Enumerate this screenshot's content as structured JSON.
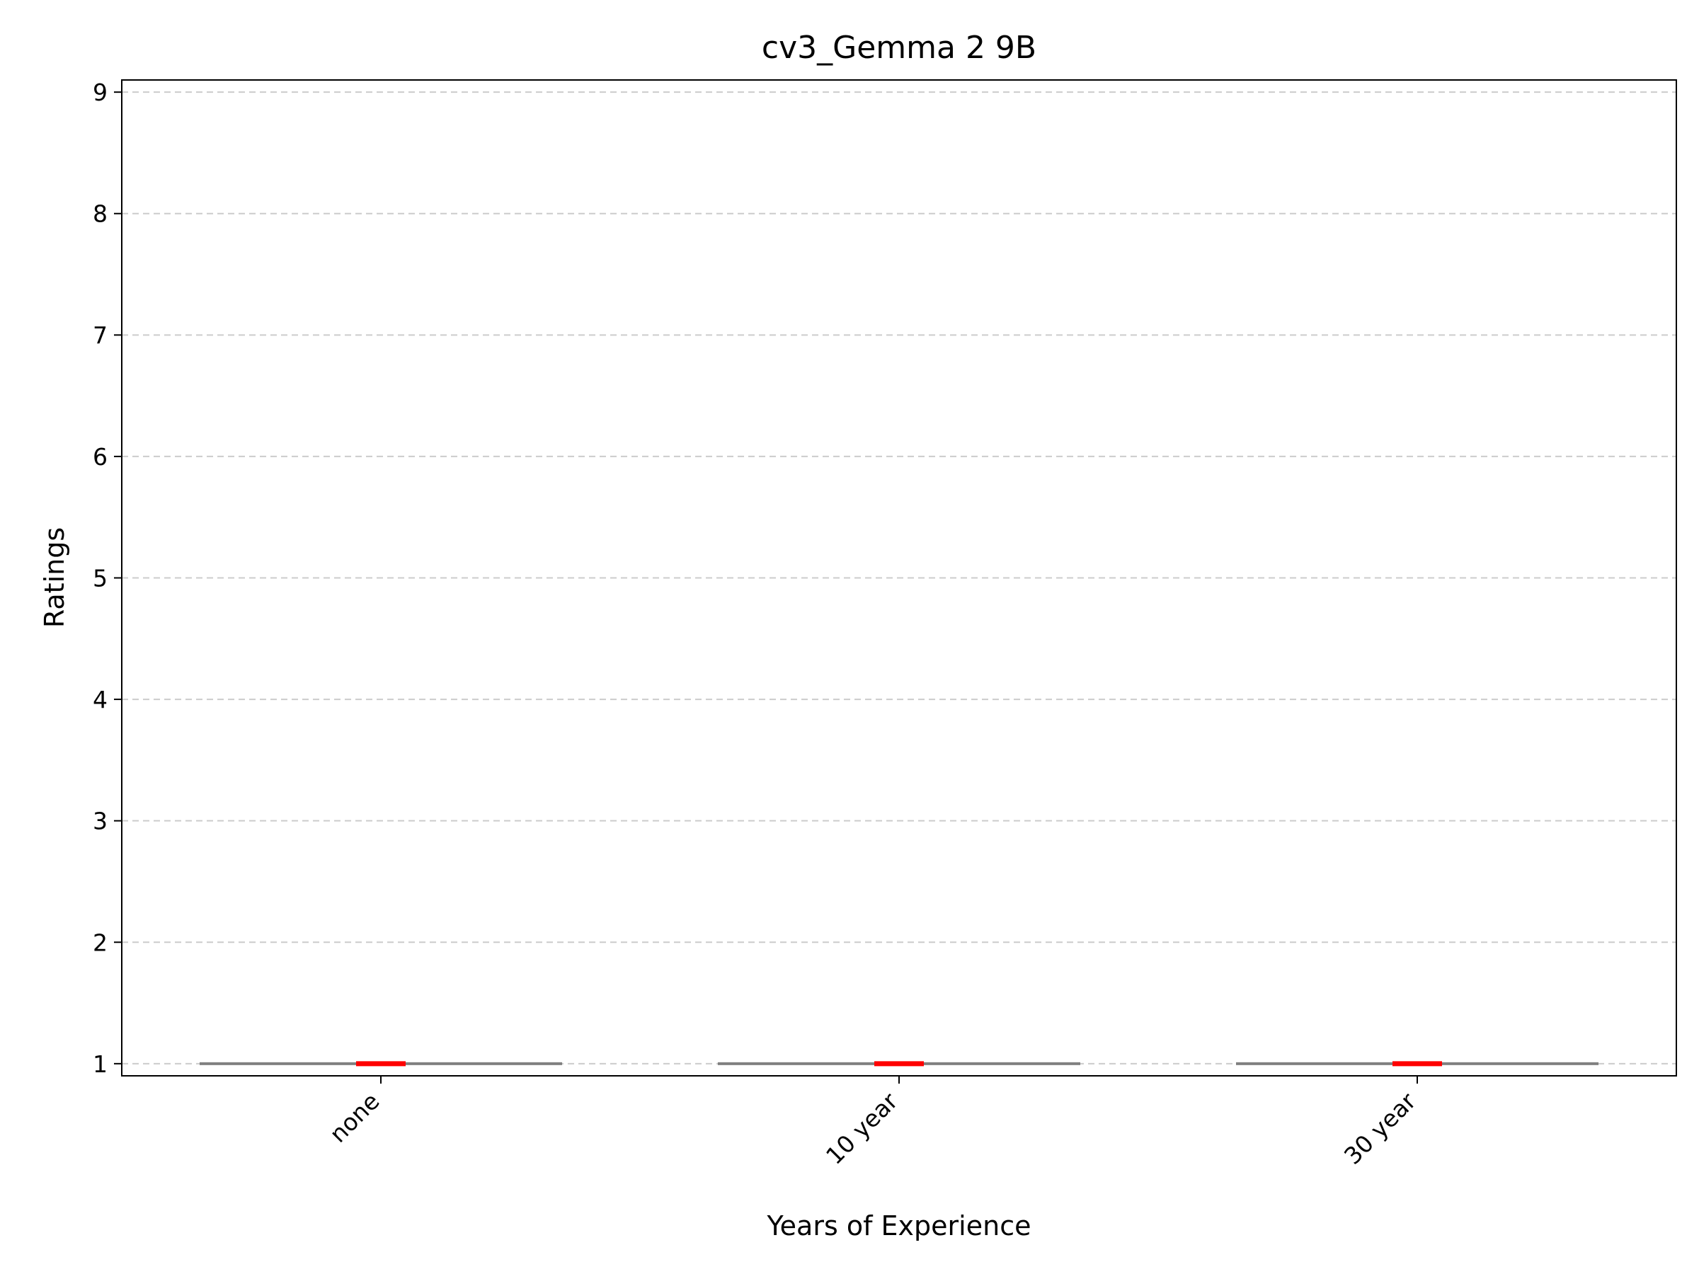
{
  "chart_data": {
    "type": "box",
    "title": "cv3_Gemma 2 9B",
    "xlabel": "Years of Experience",
    "ylabel": "Ratings",
    "categories": [
      "none",
      "10 year",
      "30 year"
    ],
    "boxes": [
      {
        "category": "none",
        "min": 1,
        "q1": 1,
        "median": 1,
        "q3": 1,
        "max": 1
      },
      {
        "category": "10 year",
        "min": 1,
        "q1": 1,
        "median": 1,
        "q3": 1,
        "max": 1
      },
      {
        "category": "30 year",
        "min": 1,
        "q1": 1,
        "median": 1,
        "q3": 1,
        "max": 1
      }
    ],
    "ylim": [
      0.9,
      9.1
    ],
    "yticks": [
      1,
      2,
      3,
      4,
      5,
      6,
      7,
      8,
      9
    ],
    "grid": {
      "y": true,
      "x": false,
      "style": "dashed"
    },
    "colors": {
      "median": "#ff0000",
      "box": "#808080",
      "grid": "#cccccc",
      "axes": "#000000"
    }
  }
}
